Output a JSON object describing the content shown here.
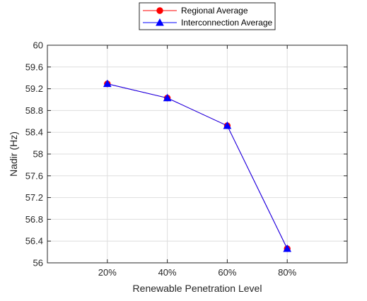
{
  "chart_data": {
    "type": "line",
    "title": "",
    "xlabel": "Renewable Penetration Level",
    "ylabel": "Nadir (Hz)",
    "categories": [
      "20%",
      "40%",
      "60%",
      "80%"
    ],
    "x": [
      20,
      40,
      60,
      80
    ],
    "xlim": [
      0,
      100
    ],
    "ylim": [
      56,
      60
    ],
    "yticks": [
      56,
      56.4,
      56.8,
      57.2,
      57.6,
      58,
      58.4,
      58.8,
      59.2,
      59.6,
      60
    ],
    "ytick_labels": [
      "56",
      "56.4",
      "56.8",
      "57.2",
      "57.6",
      "58",
      "58.4",
      "58.8",
      "59.2",
      "59.6",
      "60"
    ],
    "grid": true,
    "legend_position": "top-center",
    "series": [
      {
        "name": "Regional Average",
        "values": [
          59.29,
          59.03,
          58.52,
          56.26
        ],
        "color": "#ff0000",
        "marker": "circle"
      },
      {
        "name": "Interconnection Average",
        "values": [
          59.29,
          59.03,
          58.52,
          56.26
        ],
        "color": "#0000ff",
        "marker": "triangle"
      }
    ]
  }
}
